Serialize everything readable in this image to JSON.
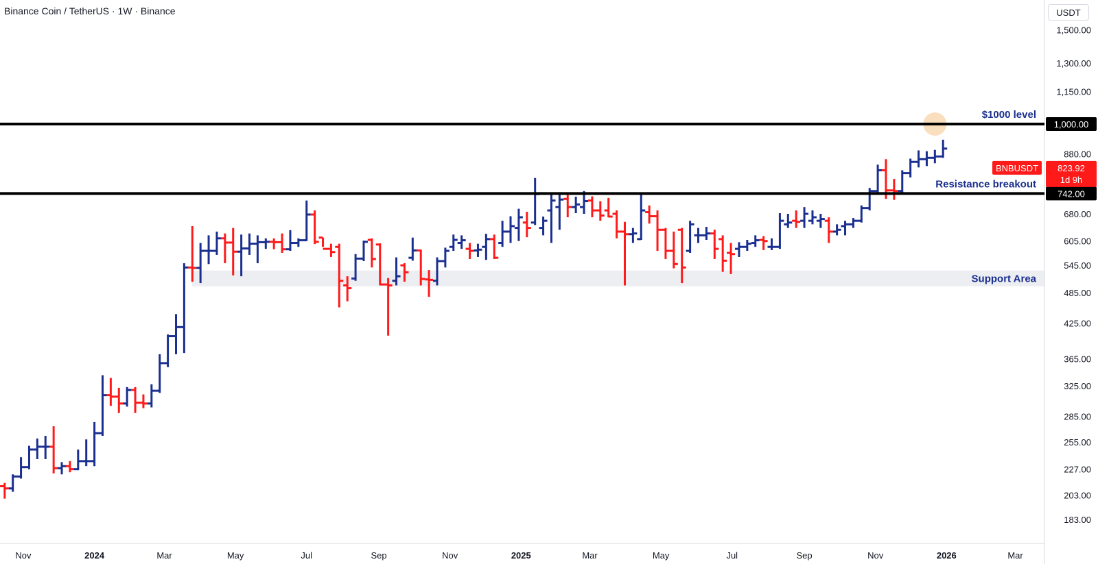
{
  "header": {
    "title": "Binance Coin / TetherUS · 1W · Binance",
    "currency": "USDT"
  },
  "colors": {
    "up": "#1a2f8f",
    "down": "#ff1a1a",
    "level_line": "#000000",
    "annotation_text": "#1a2f8f",
    "support_band": "#eceef2",
    "highlight_circle": "#f5c992"
  },
  "chart_data": {
    "type": "ohlc",
    "scale": "log",
    "ylim": [
      165,
      1560
    ],
    "x_range": [
      "2023-10-12",
      "2026-03-26"
    ],
    "y_ticks": [
      "1,500.00",
      "1,300.00",
      "1,150.00",
      "880.00",
      "680.00",
      "605.00",
      "545.00",
      "485.00",
      "425.00",
      "365.00",
      "325.00",
      "285.00",
      "255.00",
      "227.00",
      "203.00",
      "183.00"
    ],
    "x_ticks": [
      {
        "label": "Nov",
        "date": "2023-11-01",
        "bold": false
      },
      {
        "label": "2024",
        "date": "2024-01-01",
        "bold": true
      },
      {
        "label": "Mar",
        "date": "2024-03-01",
        "bold": false
      },
      {
        "label": "May",
        "date": "2024-05-01",
        "bold": false
      },
      {
        "label": "Jul",
        "date": "2024-07-01",
        "bold": false
      },
      {
        "label": "Sep",
        "date": "2024-09-01",
        "bold": false
      },
      {
        "label": "Nov",
        "date": "2024-11-01",
        "bold": false
      },
      {
        "label": "2025",
        "date": "2025-01-01",
        "bold": true
      },
      {
        "label": "Mar",
        "date": "2025-03-01",
        "bold": false
      },
      {
        "label": "May",
        "date": "2025-05-01",
        "bold": false
      },
      {
        "label": "Jul",
        "date": "2025-07-01",
        "bold": false
      },
      {
        "label": "Sep",
        "date": "2025-09-01",
        "bold": false
      },
      {
        "label": "Nov",
        "date": "2025-11-01",
        "bold": false
      },
      {
        "label": "2026",
        "date": "2026-01-01",
        "bold": true
      },
      {
        "label": "Mar",
        "date": "2026-03-01",
        "bold": false
      }
    ],
    "horizontal_levels": [
      {
        "value": 1000,
        "label": "$1000 level",
        "axis_label": "1,000.00"
      },
      {
        "value": 742,
        "label": "Resistance breakout",
        "axis_label": "742.00"
      }
    ],
    "support_area": {
      "low": 498,
      "high": 533,
      "label": "Support Area"
    },
    "current_price": {
      "symbol": "BNBUSDT",
      "value": "823.92",
      "countdown": "1d 9h"
    },
    "bars": [
      {
        "date": "2023-10-09",
        "open": 212,
        "high": 222,
        "low": 205,
        "close": 211
      },
      {
        "date": "2023-10-16",
        "open": 211,
        "high": 214,
        "low": 200,
        "close": 209
      },
      {
        "date": "2023-10-23",
        "open": 209,
        "high": 222,
        "low": 206,
        "close": 220
      },
      {
        "date": "2023-10-30",
        "open": 220,
        "high": 239,
        "low": 218,
        "close": 229
      },
      {
        "date": "2023-11-06",
        "open": 229,
        "high": 251,
        "low": 227,
        "close": 247
      },
      {
        "date": "2023-11-13",
        "open": 247,
        "high": 259,
        "low": 237,
        "close": 250
      },
      {
        "date": "2023-11-20",
        "open": 250,
        "high": 262,
        "low": 237,
        "close": 250
      },
      {
        "date": "2023-11-27",
        "open": 250,
        "high": 273,
        "low": 223,
        "close": 228
      },
      {
        "date": "2023-12-04",
        "open": 228,
        "high": 234,
        "low": 222,
        "close": 230
      },
      {
        "date": "2023-12-11",
        "open": 230,
        "high": 235,
        "low": 224,
        "close": 227
      },
      {
        "date": "2023-12-18",
        "open": 227,
        "high": 247,
        "low": 226,
        "close": 235
      },
      {
        "date": "2023-12-25",
        "open": 235,
        "high": 258,
        "low": 230,
        "close": 235
      },
      {
        "date": "2024-01-01",
        "open": 235,
        "high": 278,
        "low": 230,
        "close": 265
      },
      {
        "date": "2024-01-08",
        "open": 265,
        "high": 340,
        "low": 262,
        "close": 312
      },
      {
        "date": "2024-01-15",
        "open": 312,
        "high": 336,
        "low": 298,
        "close": 310
      },
      {
        "date": "2024-01-22",
        "open": 310,
        "high": 322,
        "low": 289,
        "close": 301
      },
      {
        "date": "2024-01-29",
        "open": 301,
        "high": 323,
        "low": 297,
        "close": 319
      },
      {
        "date": "2024-02-05",
        "open": 319,
        "high": 323,
        "low": 289,
        "close": 302
      },
      {
        "date": "2024-02-12",
        "open": 302,
        "high": 313,
        "low": 295,
        "close": 301
      },
      {
        "date": "2024-02-19",
        "open": 301,
        "high": 327,
        "low": 296,
        "close": 318
      },
      {
        "date": "2024-02-26",
        "open": 318,
        "high": 372,
        "low": 315,
        "close": 358
      },
      {
        "date": "2024-03-04",
        "open": 358,
        "high": 405,
        "low": 352,
        "close": 402
      },
      {
        "date": "2024-03-11",
        "open": 402,
        "high": 442,
        "low": 372,
        "close": 418
      },
      {
        "date": "2024-03-18",
        "open": 418,
        "high": 550,
        "low": 374,
        "close": 540
      },
      {
        "date": "2024-03-25",
        "open": 540,
        "high": 645,
        "low": 508,
        "close": 539
      },
      {
        "date": "2024-04-01",
        "open": 539,
        "high": 600,
        "low": 505,
        "close": 580
      },
      {
        "date": "2024-04-08",
        "open": 580,
        "high": 620,
        "low": 548,
        "close": 580
      },
      {
        "date": "2024-04-15",
        "open": 580,
        "high": 630,
        "low": 570,
        "close": 612
      },
      {
        "date": "2024-04-22",
        "open": 612,
        "high": 625,
        "low": 550,
        "close": 601
      },
      {
        "date": "2024-04-29",
        "open": 601,
        "high": 640,
        "low": 522,
        "close": 578
      },
      {
        "date": "2024-05-06",
        "open": 578,
        "high": 622,
        "low": 520,
        "close": 586
      },
      {
        "date": "2024-05-13",
        "open": 586,
        "high": 625,
        "low": 570,
        "close": 598
      },
      {
        "date": "2024-05-20",
        "open": 598,
        "high": 620,
        "low": 550,
        "close": 602
      },
      {
        "date": "2024-05-27",
        "open": 602,
        "high": 612,
        "low": 585,
        "close": 603
      },
      {
        "date": "2024-06-03",
        "open": 603,
        "high": 612,
        "low": 584,
        "close": 602
      },
      {
        "date": "2024-06-10",
        "open": 602,
        "high": 625,
        "low": 575,
        "close": 584
      },
      {
        "date": "2024-06-17",
        "open": 584,
        "high": 634,
        "low": 580,
        "close": 600
      },
      {
        "date": "2024-06-24",
        "open": 600,
        "high": 612,
        "low": 590,
        "close": 607
      },
      {
        "date": "2024-07-01",
        "open": 607,
        "high": 720,
        "low": 605,
        "close": 678
      },
      {
        "date": "2024-07-08",
        "open": 678,
        "high": 690,
        "low": 597,
        "close": 603
      },
      {
        "date": "2024-07-15",
        "open": 614,
        "high": 614,
        "low": 590,
        "close": 585
      },
      {
        "date": "2024-07-22",
        "open": 585,
        "high": 598,
        "low": 565,
        "close": 577
      },
      {
        "date": "2024-07-29",
        "open": 590,
        "high": 598,
        "low": 455,
        "close": 510
      },
      {
        "date": "2024-08-05",
        "open": 500,
        "high": 520,
        "low": 467,
        "close": 494
      },
      {
        "date": "2024-08-12",
        "open": 515,
        "high": 572,
        "low": 510,
        "close": 561
      },
      {
        "date": "2024-08-19",
        "open": 561,
        "high": 606,
        "low": 555,
        "close": 603
      },
      {
        "date": "2024-08-26",
        "open": 608,
        "high": 612,
        "low": 540,
        "close": 560
      },
      {
        "date": "2024-09-02",
        "open": 596,
        "high": 599,
        "low": 500,
        "close": 502
      },
      {
        "date": "2024-09-09",
        "open": 502,
        "high": 516,
        "low": 403,
        "close": 500
      },
      {
        "date": "2024-09-16",
        "open": 510,
        "high": 564,
        "low": 500,
        "close": 520
      },
      {
        "date": "2024-09-23",
        "open": 545,
        "high": 550,
        "low": 508,
        "close": 529
      },
      {
        "date": "2024-09-30",
        "open": 563,
        "high": 614,
        "low": 556,
        "close": 581
      },
      {
        "date": "2024-10-07",
        "open": 581,
        "high": 583,
        "low": 500,
        "close": 514
      },
      {
        "date": "2024-10-14",
        "open": 513,
        "high": 534,
        "low": 476,
        "close": 512
      },
      {
        "date": "2024-10-21",
        "open": 510,
        "high": 564,
        "low": 500,
        "close": 555
      },
      {
        "date": "2024-10-28",
        "open": 555,
        "high": 588,
        "low": 540,
        "close": 580
      },
      {
        "date": "2024-11-04",
        "open": 590,
        "high": 622,
        "low": 580,
        "close": 608
      },
      {
        "date": "2024-11-11",
        "open": 600,
        "high": 620,
        "low": 585,
        "close": 607
      },
      {
        "date": "2024-11-18",
        "open": 585,
        "high": 600,
        "low": 560,
        "close": 580
      },
      {
        "date": "2024-11-25",
        "open": 581,
        "high": 598,
        "low": 565,
        "close": 583
      },
      {
        "date": "2024-12-02",
        "open": 590,
        "high": 624,
        "low": 558,
        "close": 610
      },
      {
        "date": "2024-12-09",
        "open": 610,
        "high": 622,
        "low": 560,
        "close": 563
      },
      {
        "date": "2024-12-16",
        "open": 600,
        "high": 660,
        "low": 590,
        "close": 630
      },
      {
        "date": "2024-12-23",
        "open": 630,
        "high": 673,
        "low": 600,
        "close": 645
      },
      {
        "date": "2024-12-30",
        "open": 640,
        "high": 695,
        "low": 605,
        "close": 670
      },
      {
        "date": "2025-01-06",
        "open": 655,
        "high": 686,
        "low": 615,
        "close": 640
      },
      {
        "date": "2025-01-13",
        "open": 655,
        "high": 793,
        "low": 648,
        "close": 740
      },
      {
        "date": "2025-01-20",
        "open": 640,
        "high": 672,
        "low": 620,
        "close": 660
      },
      {
        "date": "2025-01-27",
        "open": 690,
        "high": 742,
        "low": 600,
        "close": 720
      },
      {
        "date": "2025-02-03",
        "open": 700,
        "high": 738,
        "low": 635,
        "close": 723
      },
      {
        "date": "2025-02-10",
        "open": 725,
        "high": 742,
        "low": 670,
        "close": 700
      },
      {
        "date": "2025-02-17",
        "open": 700,
        "high": 732,
        "low": 682,
        "close": 708
      },
      {
        "date": "2025-02-24",
        "open": 700,
        "high": 750,
        "low": 680,
        "close": 718
      },
      {
        "date": "2025-03-03",
        "open": 720,
        "high": 733,
        "low": 670,
        "close": 690
      },
      {
        "date": "2025-03-10",
        "open": 690,
        "high": 718,
        "low": 660,
        "close": 675
      },
      {
        "date": "2025-03-17",
        "open": 690,
        "high": 728,
        "low": 670,
        "close": 672
      },
      {
        "date": "2025-03-24",
        "open": 680,
        "high": 690,
        "low": 612,
        "close": 630
      },
      {
        "date": "2025-03-31",
        "open": 630,
        "high": 657,
        "low": 500,
        "close": 623
      },
      {
        "date": "2025-04-07",
        "open": 623,
        "high": 640,
        "low": 600,
        "close": 625
      },
      {
        "date": "2025-04-14",
        "open": 610,
        "high": 745,
        "low": 608,
        "close": 690
      },
      {
        "date": "2025-04-21",
        "open": 685,
        "high": 705,
        "low": 652,
        "close": 673
      },
      {
        "date": "2025-04-28",
        "open": 673,
        "high": 690,
        "low": 580,
        "close": 635
      },
      {
        "date": "2025-05-05",
        "open": 635,
        "high": 640,
        "low": 560,
        "close": 580
      },
      {
        "date": "2025-05-12",
        "open": 580,
        "high": 630,
        "low": 538,
        "close": 548
      },
      {
        "date": "2025-05-19",
        "open": 635,
        "high": 640,
        "low": 505,
        "close": 540
      },
      {
        "date": "2025-05-26",
        "open": 580,
        "high": 660,
        "low": 575,
        "close": 650
      },
      {
        "date": "2025-06-02",
        "open": 620,
        "high": 640,
        "low": 600,
        "close": 620
      },
      {
        "date": "2025-06-09",
        "open": 620,
        "high": 643,
        "low": 608,
        "close": 625
      },
      {
        "date": "2025-06-16",
        "open": 625,
        "high": 635,
        "low": 560,
        "close": 585
      },
      {
        "date": "2025-06-23",
        "open": 610,
        "high": 620,
        "low": 530,
        "close": 556
      },
      {
        "date": "2025-06-30",
        "open": 575,
        "high": 600,
        "low": 525,
        "close": 572
      },
      {
        "date": "2025-07-07",
        "open": 585,
        "high": 602,
        "low": 565,
        "close": 590
      },
      {
        "date": "2025-07-14",
        "open": 590,
        "high": 608,
        "low": 580,
        "close": 598
      },
      {
        "date": "2025-07-21",
        "open": 600,
        "high": 620,
        "low": 590,
        "close": 607
      },
      {
        "date": "2025-07-28",
        "open": 608,
        "high": 618,
        "low": 582,
        "close": 605
      },
      {
        "date": "2025-08-04",
        "open": 590,
        "high": 612,
        "low": 582,
        "close": 590
      },
      {
        "date": "2025-08-11",
        "open": 590,
        "high": 682,
        "low": 585,
        "close": 660
      },
      {
        "date": "2025-08-18",
        "open": 650,
        "high": 680,
        "low": 640,
        "close": 655
      },
      {
        "date": "2025-08-25",
        "open": 660,
        "high": 690,
        "low": 640,
        "close": 657
      },
      {
        "date": "2025-09-01",
        "open": 660,
        "high": 700,
        "low": 640,
        "close": 680
      },
      {
        "date": "2025-09-08",
        "open": 660,
        "high": 690,
        "low": 650,
        "close": 670
      },
      {
        "date": "2025-09-15",
        "open": 660,
        "high": 680,
        "low": 640,
        "close": 665
      },
      {
        "date": "2025-09-22",
        "open": 660,
        "high": 670,
        "low": 600,
        "close": 630
      },
      {
        "date": "2025-09-29",
        "open": 630,
        "high": 650,
        "low": 620,
        "close": 635
      },
      {
        "date": "2025-10-06",
        "open": 645,
        "high": 660,
        "low": 620,
        "close": 650
      },
      {
        "date": "2025-10-13",
        "open": 650,
        "high": 668,
        "low": 640,
        "close": 660
      },
      {
        "date": "2025-10-20",
        "open": 660,
        "high": 705,
        "low": 655,
        "close": 697
      },
      {
        "date": "2025-10-27",
        "open": 697,
        "high": 760,
        "low": 690,
        "close": 750
      },
      {
        "date": "2025-11-03",
        "open": 750,
        "high": 840,
        "low": 740,
        "close": 820
      },
      {
        "date": "2025-11-10",
        "open": 820,
        "high": 860,
        "low": 725,
        "close": 752
      },
      {
        "date": "2025-11-17",
        "open": 752,
        "high": 790,
        "low": 722,
        "close": 750
      },
      {
        "date": "2025-11-24",
        "open": 750,
        "high": 820,
        "low": 745,
        "close": 810
      },
      {
        "date": "2025-12-01",
        "open": 810,
        "high": 862,
        "low": 795,
        "close": 850
      },
      {
        "date": "2025-12-08",
        "open": 850,
        "high": 893,
        "low": 830,
        "close": 860
      },
      {
        "date": "2025-12-15",
        "open": 860,
        "high": 890,
        "low": 835,
        "close": 865
      },
      {
        "date": "2025-12-22",
        "open": 865,
        "high": 895,
        "low": 845,
        "close": 870
      },
      {
        "date": "2025-12-29",
        "open": 870,
        "high": 935,
        "low": 865,
        "close": 900
      }
    ]
  }
}
